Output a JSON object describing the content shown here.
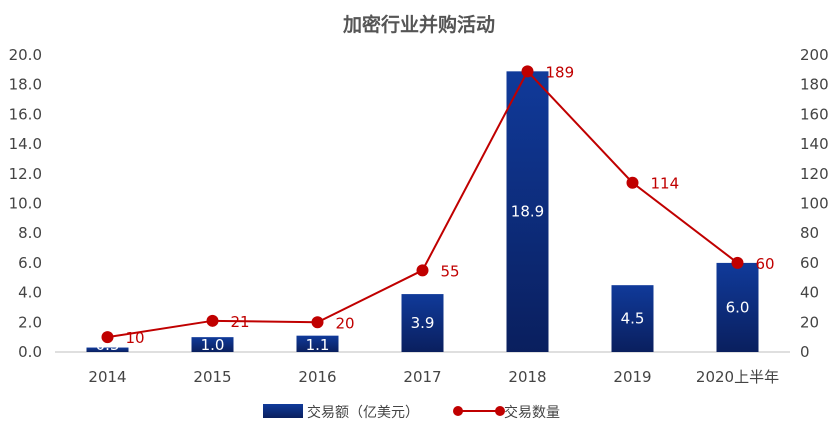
{
  "chart_data": {
    "type": "bar",
    "title": "加密行业并购活动",
    "categories": [
      "2014",
      "2015",
      "2016",
      "2017",
      "2018",
      "2019",
      "2020上半年"
    ],
    "series": [
      {
        "name": "交易额（亿美元）",
        "kind": "bar",
        "axis": "left",
        "values": [
          0.3,
          1.0,
          1.1,
          3.9,
          18.9,
          4.5,
          6.0
        ],
        "labels": [
          "0.3",
          "1.0",
          "1.1",
          "3.9",
          "18.9",
          "4.5",
          "6.0"
        ],
        "color": "#0d2a78"
      },
      {
        "name": "交易数量",
        "kind": "line",
        "axis": "right",
        "values": [
          10,
          21,
          20,
          55,
          189,
          114,
          60
        ],
        "labels": [
          "10",
          "21",
          "20",
          "55",
          "189",
          "114",
          "60"
        ],
        "color": "#c00000"
      }
    ],
    "y_left": {
      "lim": [
        0,
        20
      ],
      "ticks": [
        "0.0",
        "2.0",
        "4.0",
        "6.0",
        "8.0",
        "10.0",
        "12.0",
        "14.0",
        "16.0",
        "18.0",
        "20.0"
      ]
    },
    "y_right": {
      "lim": [
        0,
        200
      ],
      "ticks": [
        "0",
        "20",
        "40",
        "60",
        "80",
        "100",
        "120",
        "140",
        "160",
        "180",
        "200"
      ]
    },
    "grid": false,
    "legend": "bottom"
  }
}
